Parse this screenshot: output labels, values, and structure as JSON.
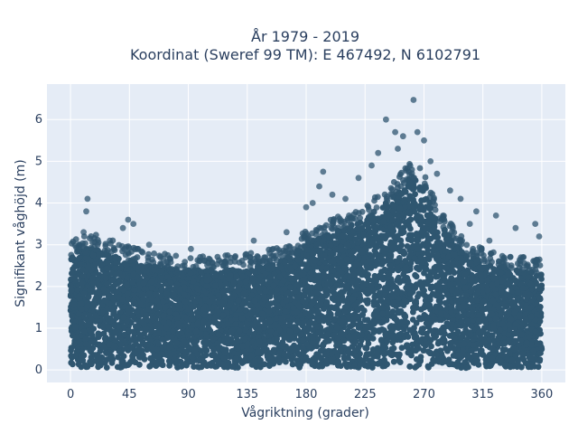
{
  "chart_data": {
    "type": "scatter",
    "title_line1": "År 1979 - 2019",
    "title_line2": "Koordinat (Sweref 99 TM): E 467492, N 6102791",
    "xlabel": "Vågriktning (grader)",
    "ylabel": "Signifikant våghöjd (m)",
    "xlim": [
      -18,
      378
    ],
    "ylim": [
      -0.3,
      6.85
    ],
    "xticks": [
      0,
      45,
      90,
      135,
      180,
      225,
      270,
      315,
      360
    ],
    "yticks": [
      0,
      1,
      2,
      3,
      4,
      5,
      6
    ],
    "grid": true,
    "colors": {
      "marker": "#2f5670",
      "plot_bg": "#e5ecf6",
      "grid": "#ffffff",
      "text": "#2a3f5f"
    },
    "envelope": {
      "direction": [
        0,
        10,
        20,
        30,
        45,
        60,
        80,
        100,
        130,
        160,
        180,
        200,
        225,
        245,
        258,
        268,
        280,
        300,
        320,
        340,
        360
      ],
      "upper_hs": [
        2.7,
        2.9,
        2.9,
        2.8,
        2.6,
        2.5,
        2.4,
        2.4,
        2.4,
        2.6,
        3.0,
        3.3,
        3.6,
        4.1,
        4.6,
        4.5,
        3.6,
        2.8,
        2.5,
        2.4,
        2.3
      ]
    },
    "outliers": [
      {
        "x": 7,
        "y": 3.0
      },
      {
        "x": 13,
        "y": 4.1
      },
      {
        "x": 12,
        "y": 3.8
      },
      {
        "x": 10,
        "y": 3.3
      },
      {
        "x": 44,
        "y": 3.6
      },
      {
        "x": 48,
        "y": 3.5
      },
      {
        "x": 40,
        "y": 3.4
      },
      {
        "x": 30,
        "y": 3.1
      },
      {
        "x": 60,
        "y": 3.0
      },
      {
        "x": 92,
        "y": 2.9
      },
      {
        "x": 140,
        "y": 3.1
      },
      {
        "x": 165,
        "y": 3.3
      },
      {
        "x": 180,
        "y": 3.9
      },
      {
        "x": 185,
        "y": 4.0
      },
      {
        "x": 193,
        "y": 4.75
      },
      {
        "x": 190,
        "y": 4.4
      },
      {
        "x": 200,
        "y": 4.2
      },
      {
        "x": 210,
        "y": 4.1
      },
      {
        "x": 220,
        "y": 4.6
      },
      {
        "x": 230,
        "y": 4.9
      },
      {
        "x": 235,
        "y": 5.2
      },
      {
        "x": 241,
        "y": 6.0
      },
      {
        "x": 248,
        "y": 5.7
      },
      {
        "x": 250,
        "y": 5.3
      },
      {
        "x": 254,
        "y": 5.6
      },
      {
        "x": 262,
        "y": 6.47
      },
      {
        "x": 265,
        "y": 5.7
      },
      {
        "x": 270,
        "y": 5.5
      },
      {
        "x": 275,
        "y": 5.0
      },
      {
        "x": 280,
        "y": 4.7
      },
      {
        "x": 290,
        "y": 4.3
      },
      {
        "x": 298,
        "y": 4.1
      },
      {
        "x": 310,
        "y": 3.8
      },
      {
        "x": 325,
        "y": 3.7
      },
      {
        "x": 340,
        "y": 3.4
      },
      {
        "x": 355,
        "y": 3.5
      },
      {
        "x": 358,
        "y": 3.2
      },
      {
        "x": 320,
        "y": 3.1
      },
      {
        "x": 305,
        "y": 3.5
      }
    ]
  }
}
